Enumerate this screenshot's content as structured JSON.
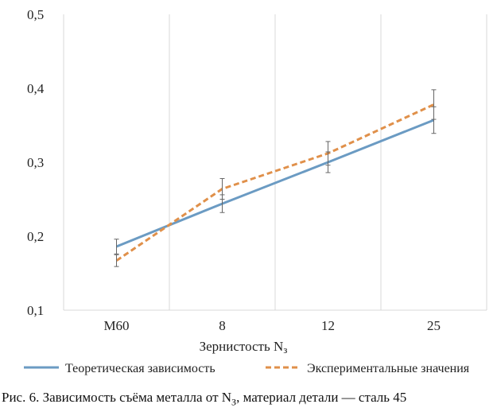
{
  "chart_data": {
    "type": "line",
    "categories": [
      "M60",
      "8",
      "12",
      "25"
    ],
    "xlabel_main": "Зернистость N",
    "xlabel_sub": "з",
    "ylim": [
      0.1,
      0.5
    ],
    "yticks": [
      0.1,
      0.2,
      0.3,
      0.4,
      0.5
    ],
    "ytick_labels": [
      "0,1",
      "0,2",
      "0,3",
      "0,4",
      "0,5"
    ],
    "grid": "vertical",
    "legend_position": "bottom",
    "series": [
      {
        "name": "Теоретическая зависимость",
        "style": "solid",
        "color": "#6b9bc3",
        "values": [
          0.186,
          0.244,
          0.3,
          0.357
        ],
        "errors": [
          0.01,
          0.012,
          0.014,
          0.018
        ]
      },
      {
        "name": "Экспериментальные значения",
        "style": "dashed",
        "color": "#e0904a",
        "values": [
          0.167,
          0.264,
          0.312,
          0.378
        ],
        "errors": [
          0.008,
          0.014,
          0.016,
          0.02
        ]
      }
    ]
  },
  "caption": {
    "prefix": "Рис. 6. Зависимость съёма металла от N",
    "sub": "З",
    "suffix": ", материал детали — сталь 45"
  }
}
